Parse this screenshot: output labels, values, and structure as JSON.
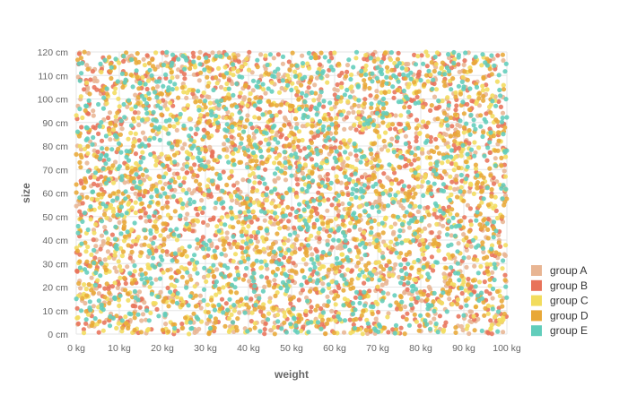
{
  "chart_data": {
    "type": "scatter",
    "title": "",
    "xlabel": "weight",
    "ylabel": "size",
    "xlim": [
      0,
      100
    ],
    "ylim": [
      0,
      120
    ],
    "x_ticks": [
      "0 kg",
      "10 kg",
      "20 kg",
      "30 kg",
      "40 kg",
      "50 kg",
      "60 kg",
      "70 kg",
      "80 kg",
      "90 kg",
      "100 kg"
    ],
    "y_ticks": [
      "0 cm",
      "10 cm",
      "20 cm",
      "30 cm",
      "40 cm",
      "50 cm",
      "60 cm",
      "70 cm",
      "80 cm",
      "90 cm",
      "100 cm",
      "110 cm",
      "120 cm"
    ],
    "grid": true,
    "legend_position": "right-bottom",
    "series": [
      {
        "name": "group A",
        "color": "#e8b593",
        "count": 1000
      },
      {
        "name": "group B",
        "color": "#e8735a",
        "count": 1000
      },
      {
        "name": "group C",
        "color": "#f2dc5d",
        "count": 1000
      },
      {
        "name": "group D",
        "color": "#e8a838",
        "count": 1000
      },
      {
        "name": "group E",
        "color": "#61cdbb",
        "count": 1000
      }
    ],
    "distribution": "uniform random points over the full x and y range for every series"
  }
}
